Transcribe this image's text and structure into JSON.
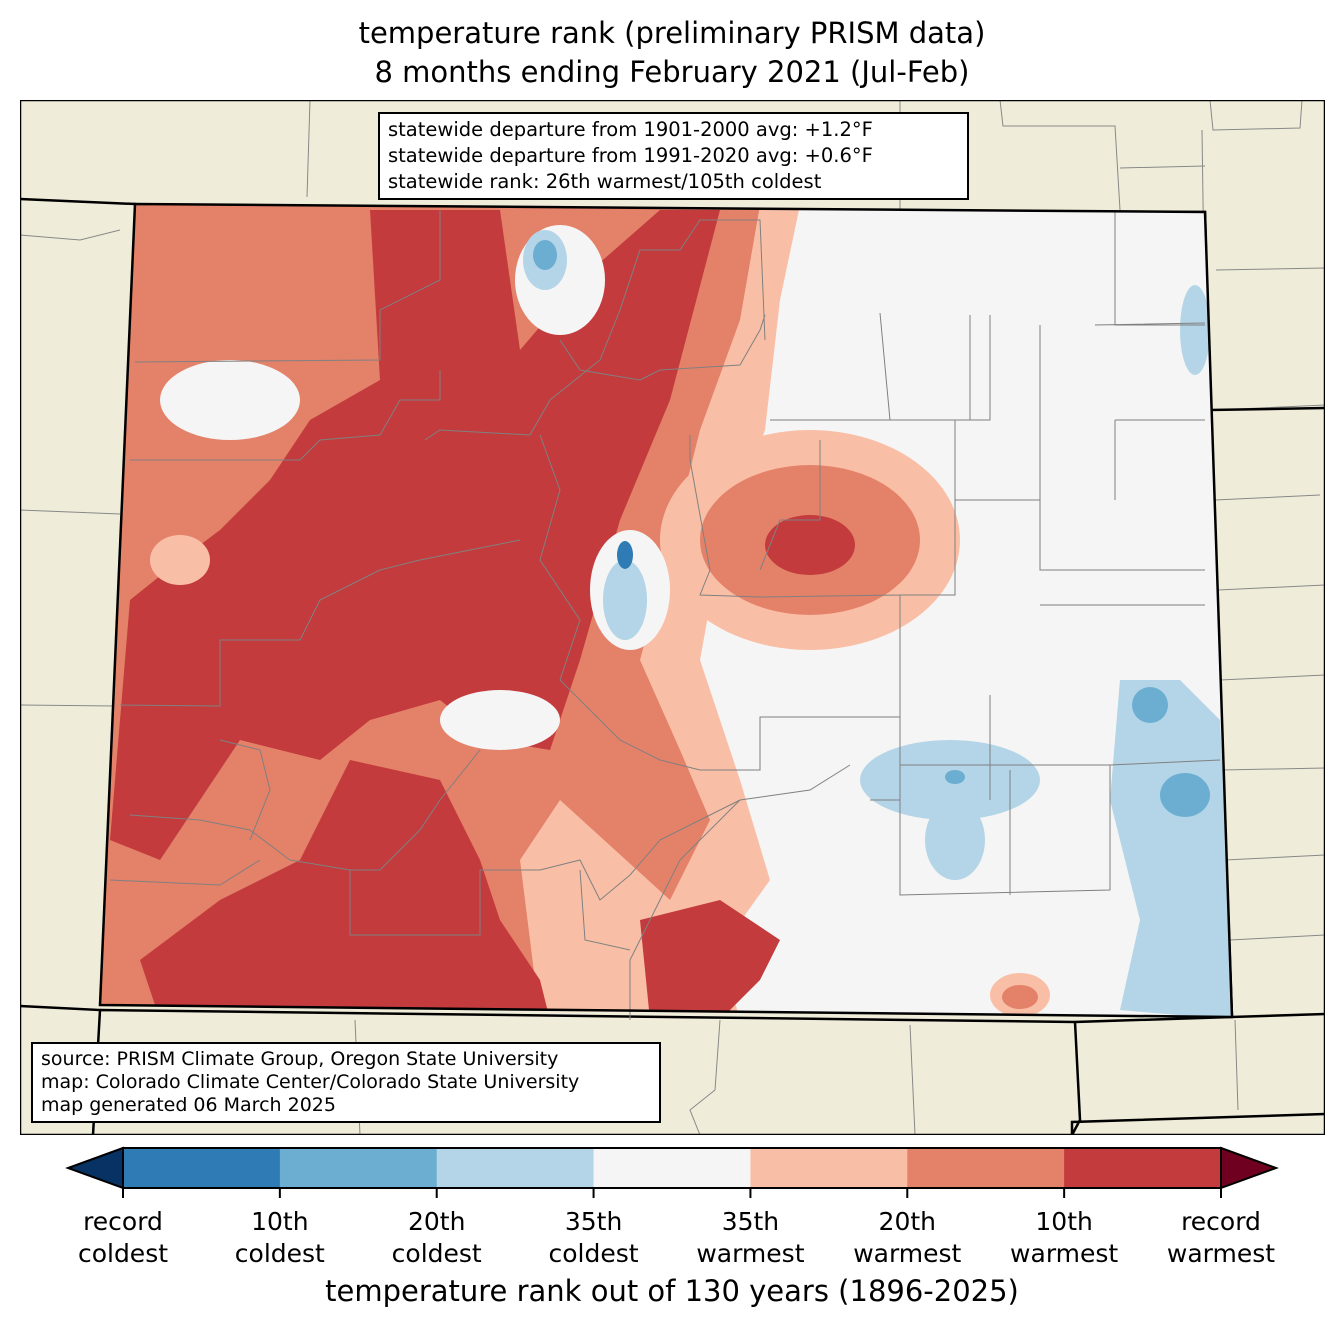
{
  "title": {
    "line1": "temperature rank (preliminary PRISM data)",
    "line2": "8 months ending February 2021 (Jul-Feb)"
  },
  "stats": [
    "statewide departure from 1901-2000 avg: +1.2°F",
    "statewide departure from 1991-2020 avg: +0.6°F",
    "statewide rank: 26th warmest/105th coldest"
  ],
  "source": [
    "source: PRISM Climate Group, Oregon State University",
    "map: Colorado Climate Center/Colorado State University",
    "map generated 06 March 2025"
  ],
  "colorbar": {
    "label": "temperature rank out of 130 years (1896-2025)",
    "low_extend_color": "#083264",
    "high_extend_color": "#6f0020",
    "bins": [
      {
        "color": "#2f7bb6"
      },
      {
        "color": "#6baed2"
      },
      {
        "color": "#b3d5e7"
      },
      {
        "color": "#f5f5f5"
      },
      {
        "color": "#f9bfa6"
      },
      {
        "color": "#e48169"
      },
      {
        "color": "#c33b3d"
      }
    ],
    "ticks": [
      {
        "l1": "record",
        "l2": "coldest"
      },
      {
        "l1": "10th",
        "l2": "coldest"
      },
      {
        "l1": "20th",
        "l2": "coldest"
      },
      {
        "l1": "35th",
        "l2": "coldest"
      },
      {
        "l1": "35th",
        "l2": "warmest"
      },
      {
        "l1": "20th",
        "l2": "warmest"
      },
      {
        "l1": "10th",
        "l2": "warmest"
      },
      {
        "l1": "record",
        "l2": "warmest"
      }
    ]
  },
  "colors": {
    "land": "#efedda",
    "state_fill": "#f5f5f5"
  }
}
